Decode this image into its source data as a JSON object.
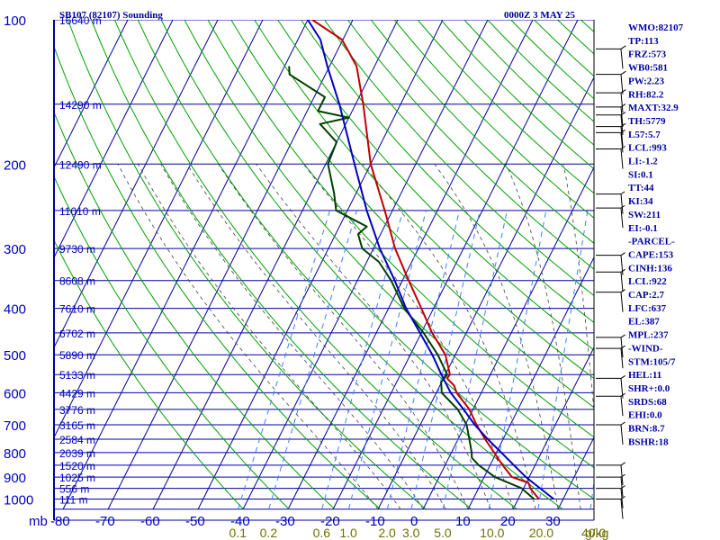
{
  "header": {
    "title": "SB107 (82107) Sounding",
    "datetime": "0000Z  3 MAY 25"
  },
  "chart_data": {
    "type": "line",
    "pressure_ticks": [
      100,
      200,
      300,
      400,
      500,
      600,
      700,
      800,
      900,
      1000
    ],
    "pressure_labels": [
      "100",
      "200",
      "300",
      "400",
      "500",
      "600",
      "700",
      "800",
      "900",
      "1000"
    ],
    "pressure_unit_label": "mb",
    "temperature_ticks": [
      -80,
      -70,
      -60,
      -50,
      -40,
      -30,
      -20,
      -10,
      0,
      10,
      20,
      30
    ],
    "temperature_labels": [
      "-80",
      "-70",
      "-60",
      "-50",
      "-40",
      "-30",
      "-20",
      "-10",
      "0",
      "10",
      "20",
      "30"
    ],
    "temperature_range": [
      -80,
      40
    ],
    "pressure_range": [
      100,
      1050
    ],
    "height_levels": [
      {
        "p": 100,
        "label": "16640 m"
      },
      {
        "p": 150,
        "label": "14290 m"
      },
      {
        "p": 200,
        "label": "12490 m"
      },
      {
        "p": 250,
        "label": "11010 m"
      },
      {
        "p": 300,
        "label": "9730 m"
      },
      {
        "p": 350,
        "label": "8608 m"
      },
      {
        "p": 400,
        "label": "7610 m"
      },
      {
        "p": 450,
        "label": "6702 m"
      },
      {
        "p": 500,
        "label": "5890 m"
      },
      {
        "p": 550,
        "label": "5133 m"
      },
      {
        "p": 600,
        "label": "4429 m"
      },
      {
        "p": 650,
        "label": "3776 m"
      },
      {
        "p": 700,
        "label": "3165 m"
      },
      {
        "p": 750,
        "label": "2584 m"
      },
      {
        "p": 800,
        "label": "2039 m"
      },
      {
        "p": 850,
        "label": "1520 m"
      },
      {
        "p": 900,
        "label": "1025 m"
      },
      {
        "p": 950,
        "label": "556 m"
      },
      {
        "p": 1000,
        "label": "111 m"
      }
    ],
    "mixing_ratio_labels": [
      {
        "w": 0.1,
        "label": "0.1"
      },
      {
        "w": 0.2,
        "label": "0.2"
      },
      {
        "w": 0.6,
        "label": "0.6"
      },
      {
        "w": 1.0,
        "label": "1.0"
      },
      {
        "w": 2.0,
        "label": "2.0"
      },
      {
        "w": 3.0,
        "label": "3.0"
      },
      {
        "w": 5.0,
        "label": "5.0"
      },
      {
        "w": 10.0,
        "label": "10.0"
      },
      {
        "w": 20.0,
        "label": "20.0"
      },
      {
        "w": 40.0,
        "label": "40.0"
      }
    ],
    "mixing_ratio_unit": "g/kg",
    "series": [
      {
        "color": "#c00000",
        "width": 2,
        "points": [
          [
            1000,
            24.6
          ],
          [
            950,
            21.5
          ],
          [
            925,
            20.5
          ],
          [
            900,
            16.2
          ],
          [
            850,
            12.8
          ],
          [
            800,
            9.5
          ],
          [
            750,
            6.0
          ],
          [
            700,
            2.5
          ],
          [
            650,
            -0.8
          ],
          [
            600,
            -5.5
          ],
          [
            580,
            -6.8
          ],
          [
            560,
            -9.2
          ],
          [
            550,
            -9.0
          ],
          [
            500,
            -12.2
          ],
          [
            450,
            -17.6
          ],
          [
            400,
            -22.7
          ],
          [
            350,
            -28.6
          ],
          [
            300,
            -35.2
          ],
          [
            250,
            -41.7
          ],
          [
            200,
            -50.0
          ],
          [
            150,
            -58.3
          ],
          [
            125,
            -64.0
          ],
          [
            110,
            -70.2
          ],
          [
            100,
            -79.0
          ]
        ]
      },
      {
        "color": "#004000",
        "width": 2,
        "points": [
          [
            1000,
            23.5
          ],
          [
            950,
            19.6
          ],
          [
            900,
            12.4
          ],
          [
            850,
            7.5
          ],
          [
            820,
            5.1
          ],
          [
            800,
            4.5
          ],
          [
            750,
            2.5
          ],
          [
            700,
            0.3
          ],
          [
            650,
            -3.4
          ],
          [
            600,
            -8.8
          ],
          [
            570,
            -10.1
          ],
          [
            550,
            -9.6
          ],
          [
            500,
            -13.9
          ],
          [
            450,
            -19.5
          ],
          [
            400,
            -26.5
          ],
          [
            350,
            -32.5
          ],
          [
            320,
            -37.3
          ],
          [
            300,
            -42.5
          ],
          [
            280,
            -45.0
          ],
          [
            270,
            -43.9
          ],
          [
            250,
            -52.5
          ],
          [
            230,
            -54.9
          ],
          [
            200,
            -59.5
          ],
          [
            180,
            -60.0
          ],
          [
            165,
            -65.7
          ],
          [
            160,
            -60.0
          ],
          [
            155,
            -67.6
          ],
          [
            145,
            -67.6
          ],
          [
            130,
            -78.0
          ],
          [
            125,
            -79.0
          ]
        ]
      },
      {
        "color": "#0000c0",
        "width": 2,
        "points": [
          [
            1000,
            27.9
          ],
          [
            950,
            23.7
          ],
          [
            900,
            19.3
          ],
          [
            850,
            15.3
          ],
          [
            800,
            11.1
          ],
          [
            750,
            6.6
          ],
          [
            700,
            2.1
          ],
          [
            650,
            -2.1
          ],
          [
            600,
            -6.8
          ],
          [
            550,
            -10.9
          ],
          [
            500,
            -15.1
          ],
          [
            450,
            -20.3
          ],
          [
            400,
            -26.1
          ],
          [
            350,
            -31.7
          ],
          [
            300,
            -38.6
          ],
          [
            250,
            -45.7
          ],
          [
            200,
            -53.6
          ],
          [
            150,
            -63.6
          ],
          [
            125,
            -70.5
          ],
          [
            110,
            -75.0
          ],
          [
            100,
            -80.0
          ]
        ]
      }
    ]
  },
  "wind_barbs": [
    {
      "p": 115,
      "len": 14
    },
    {
      "p": 130,
      "len": 14
    },
    {
      "p": 142,
      "len": 14
    },
    {
      "p": 152,
      "len": 13
    },
    {
      "p": 158,
      "len": 13
    },
    {
      "p": 167,
      "len": 13
    },
    {
      "p": 172,
      "len": 12
    },
    {
      "p": 186,
      "len": 12
    },
    {
      "p": 231,
      "len": 11
    },
    {
      "p": 247,
      "len": 11
    },
    {
      "p": 310,
      "len": 12
    },
    {
      "p": 336,
      "len": 12
    },
    {
      "p": 370,
      "len": 12
    },
    {
      "p": 460,
      "len": 12
    },
    {
      "p": 485,
      "len": 12
    },
    {
      "p": 560,
      "len": 12
    },
    {
      "p": 610,
      "len": 12
    },
    {
      "p": 700,
      "len": 12
    },
    {
      "p": 850,
      "len": 12
    },
    {
      "p": 900,
      "len": 12
    },
    {
      "p": 950,
      "len": 12
    },
    {
      "p": 1000,
      "len": 12
    }
  ],
  "indices": [
    "WMO:82107",
    "TP:113",
    "FRZ:573",
    "WB0:581",
    "PW:2.23",
    "RH:82.2",
    "MAXT:32.9",
    "TH:5779",
    "L57:5.7",
    "LCL:993",
    "LI:-1.2",
    "SI:0.1",
    "TT:44",
    "KI:34",
    "SW:211",
    "EI:-0.1",
    "-PARCEL-",
    "CAPE:153",
    "CINH:136",
    "LCL:922",
    "CAP:2.7",
    "LFC:637",
    "EL:387",
    "MPL:237",
    "-WIND-",
    "STM:105/7",
    "HEL:11",
    "SHR+:0.0",
    "SRDS:68",
    "EHI:0.0",
    "BRN:8.7",
    "BSHR:18"
  ],
  "colors": {
    "isobar": "#0000a0",
    "isotherm": "#0000a0",
    "dry_adiabat": "#00a000",
    "moist_adiabat": "#404040",
    "mixing_ratio": "#4080ff",
    "axis_text": "#0000c0",
    "mixing_text": "#707000",
    "temperature": "#c00000",
    "dewpoint": "#004000",
    "parcel": "#0000c0"
  }
}
